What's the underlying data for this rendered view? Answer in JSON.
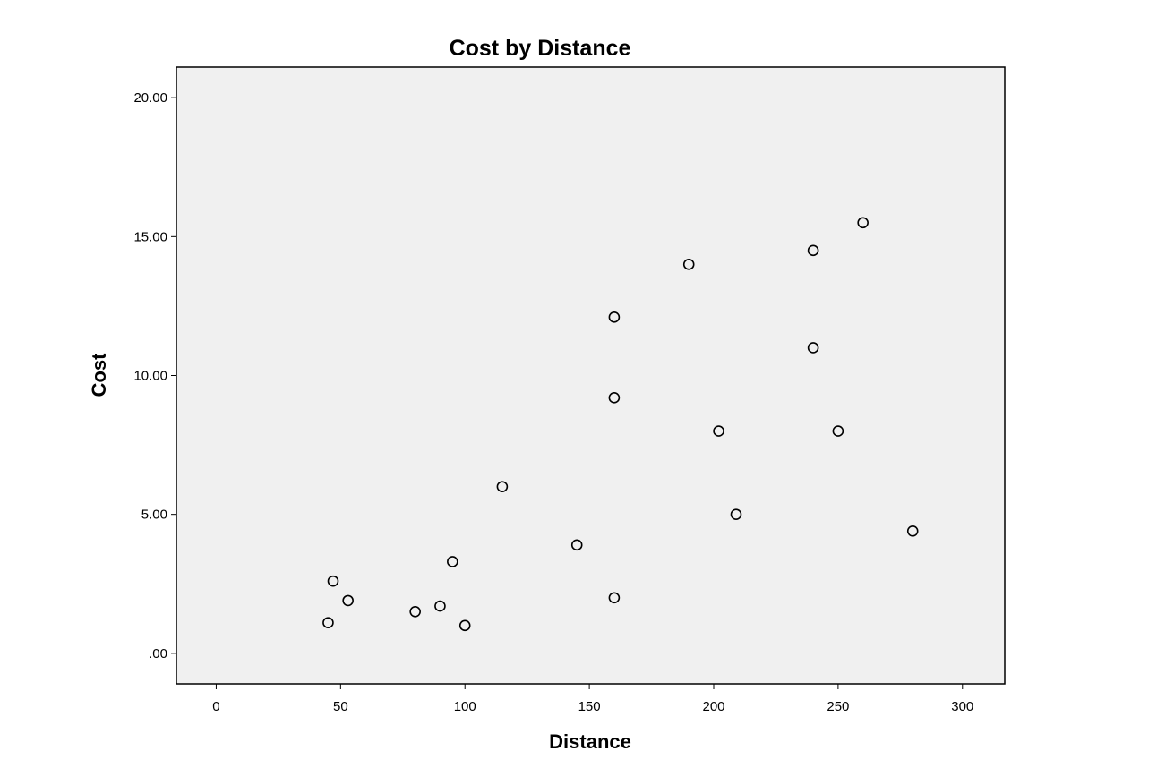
{
  "chart_data": {
    "type": "scatter",
    "title": "Cost by Distance",
    "xlabel": "Distance",
    "ylabel": "Cost",
    "xlim": [
      -16,
      317
    ],
    "ylim": [
      -1.1,
      21.1
    ],
    "x_ticks": [
      0,
      50,
      100,
      150,
      200,
      250,
      300
    ],
    "x_tick_labels": [
      "0",
      "50",
      "100",
      "150",
      "200",
      "250",
      "300"
    ],
    "y_ticks": [
      0,
      5,
      10,
      15,
      20
    ],
    "y_tick_labels": [
      ".00",
      "5.00",
      "10.00",
      "15.00",
      "20.00"
    ],
    "grid": false,
    "legend": "none",
    "colors": {
      "plot_background": "#f0f0f0",
      "marker_stroke": "#000000",
      "marker_fill": "#f0f0f0"
    },
    "points": [
      {
        "x": 45,
        "y": 1.1
      },
      {
        "x": 47,
        "y": 2.6
      },
      {
        "x": 53,
        "y": 1.9
      },
      {
        "x": 80,
        "y": 1.5
      },
      {
        "x": 90,
        "y": 1.7
      },
      {
        "x": 95,
        "y": 3.3
      },
      {
        "x": 100,
        "y": 1.0
      },
      {
        "x": 115,
        "y": 6.0
      },
      {
        "x": 145,
        "y": 3.9
      },
      {
        "x": 160,
        "y": 2.0
      },
      {
        "x": 160,
        "y": 9.2
      },
      {
        "x": 160,
        "y": 12.1
      },
      {
        "x": 190,
        "y": 14.0
      },
      {
        "x": 202,
        "y": 8.0
      },
      {
        "x": 209,
        "y": 5.0
      },
      {
        "x": 240,
        "y": 11.0
      },
      {
        "x": 240,
        "y": 14.5
      },
      {
        "x": 250,
        "y": 8.0
      },
      {
        "x": 260,
        "y": 15.5
      },
      {
        "x": 280,
        "y": 4.4
      }
    ]
  }
}
